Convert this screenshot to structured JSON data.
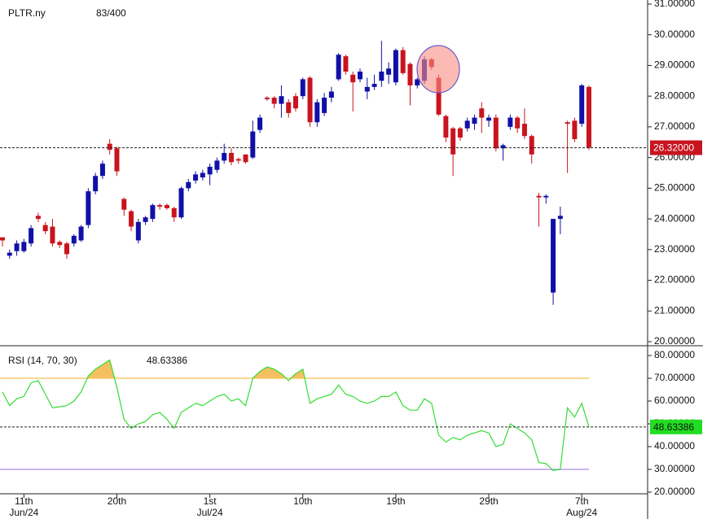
{
  "chart_data": [
    {
      "type": "candlestick",
      "title": "PLTR.ny",
      "subtitle": "83/400",
      "categories": [
        null,
        null,
        null,
        [
          "11th",
          "Jun/24"
        ],
        null,
        null,
        null,
        null,
        null,
        null,
        null,
        null,
        null,
        null,
        null,
        null,
        [
          "20th"
        ],
        null,
        null,
        null,
        null,
        null,
        null,
        null,
        null,
        null,
        null,
        null,
        null,
        [
          "1st",
          "Jul/24"
        ],
        null,
        null,
        null,
        null,
        null,
        null,
        null,
        null,
        null,
        null,
        null,
        null,
        [
          "10th"
        ],
        null,
        null,
        null,
        null,
        null,
        null,
        null,
        null,
        null,
        null,
        null,
        null,
        [
          "19th"
        ],
        null,
        null,
        null,
        null,
        null,
        null,
        null,
        null,
        null,
        null,
        null,
        null,
        [
          "29th"
        ],
        null,
        null,
        null,
        null,
        null,
        null,
        null,
        null,
        null,
        null,
        null,
        null,
        [
          "7th",
          "Aug/24"
        ],
        null
      ],
      "open": [
        23.4,
        22.8,
        22.95,
        22.95,
        23.2,
        24.1,
        23.8,
        23.75,
        23.25,
        23.2,
        23.2,
        23.3,
        23.8,
        24.9,
        25.4,
        26.45,
        26.3,
        24.65,
        24.25,
        23.3,
        23.9,
        24.0,
        24.45,
        24.45,
        24.35,
        24.05,
        25.0,
        25.25,
        25.35,
        25.45,
        25.6,
        25.9,
        26.15,
        25.95,
        26.1,
        26.0,
        26.9,
        27.95,
        27.95,
        27.75,
        27.8,
        28.0,
        28.0,
        28.6,
        27.15,
        27.45,
        27.95,
        28.55,
        29.3,
        28.7,
        28.55,
        28.15,
        28.3,
        28.5,
        28.7,
        28.45,
        29.5,
        29.05,
        28.35,
        28.5,
        29.2,
        28.6,
        27.35,
        26.95,
        26.95,
        26.95,
        27.1,
        27.6,
        27.2,
        27.3,
        26.3,
        27.0,
        27.3,
        27.1,
        26.7,
        24.75,
        24.7,
        21.6,
        24.0,
        27.15,
        27.2,
        27.1,
        28.3
      ],
      "high": [
        23.4,
        23.0,
        23.3,
        23.35,
        23.8,
        24.2,
        23.9,
        24.0,
        23.3,
        23.25,
        23.5,
        23.8,
        25.0,
        25.5,
        25.9,
        26.6,
        26.35,
        24.7,
        24.3,
        24.0,
        24.1,
        24.5,
        24.5,
        24.5,
        24.4,
        25.05,
        25.3,
        25.55,
        25.6,
        25.8,
        26.0,
        26.45,
        26.3,
        26.0,
        26.1,
        27.2,
        27.4,
        28.0,
        28.0,
        28.35,
        27.9,
        28.1,
        28.6,
        28.65,
        27.9,
        28.1,
        28.3,
        29.4,
        29.35,
        28.8,
        28.9,
        28.6,
        28.7,
        29.8,
        29.1,
        29.55,
        29.6,
        29.1,
        28.6,
        29.3,
        29.25,
        28.7,
        27.4,
        27.0,
        27.0,
        27.3,
        27.4,
        27.8,
        27.4,
        27.4,
        26.45,
        27.4,
        27.35,
        27.6,
        26.75,
        24.85,
        24.8,
        24.0,
        24.4,
        27.2,
        27.3,
        28.4,
        28.35
      ],
      "low": [
        23.1,
        22.7,
        22.8,
        22.9,
        23.1,
        23.9,
        23.5,
        23.1,
        23.05,
        22.7,
        23.1,
        23.25,
        23.7,
        24.8,
        25.3,
        26.1,
        25.4,
        24.1,
        23.6,
        23.2,
        23.8,
        23.9,
        24.3,
        24.3,
        23.9,
        24.0,
        24.9,
        25.15,
        25.25,
        25.1,
        25.5,
        25.8,
        25.75,
        25.8,
        25.8,
        25.95,
        26.8,
        27.85,
        27.6,
        27.3,
        27.3,
        27.5,
        27.9,
        27.0,
        27.0,
        27.35,
        27.8,
        28.5,
        28.7,
        27.5,
        28.45,
        27.9,
        28.2,
        28.3,
        28.4,
        28.35,
        28.7,
        27.7,
        28.25,
        28.4,
        28.85,
        27.35,
        26.5,
        25.4,
        26.55,
        26.85,
        26.9,
        26.8,
        27.0,
        26.2,
        25.9,
        26.9,
        26.8,
        26.6,
        25.8,
        23.75,
        24.5,
        21.2,
        23.5,
        25.5,
        26.5,
        27.0,
        26.25
      ],
      "close": [
        23.3,
        22.9,
        23.2,
        23.25,
        23.7,
        24.0,
        23.6,
        23.2,
        23.15,
        22.85,
        23.45,
        23.75,
        24.9,
        25.4,
        25.8,
        26.25,
        25.55,
        24.3,
        23.75,
        23.9,
        24.05,
        24.45,
        24.4,
        24.35,
        24.05,
        25.0,
        25.2,
        25.45,
        25.5,
        25.7,
        25.9,
        26.15,
        25.85,
        25.9,
        25.85,
        26.85,
        27.3,
        27.9,
        27.75,
        28.0,
        27.45,
        27.6,
        28.55,
        27.15,
        27.8,
        27.95,
        28.15,
        29.35,
        28.8,
        28.45,
        28.8,
        28.3,
        28.4,
        28.8,
        28.9,
        29.5,
        28.75,
        28.35,
        28.55,
        29.2,
        28.95,
        27.4,
        26.65,
        26.1,
        26.65,
        27.2,
        27.3,
        27.3,
        27.3,
        26.3,
        26.4,
        27.3,
        26.95,
        26.7,
        26.1,
        24.7,
        24.75,
        24.0,
        24.1,
        27.1,
        26.6,
        28.35,
        26.32
      ],
      "close_label": "26.32000",
      "up_color": "#1010a8",
      "down_color": "#c8141e",
      "ylim": [
        20,
        31
      ],
      "yticks": [
        {
          "value": 20,
          "label": "20.00000"
        },
        {
          "value": 21,
          "label": "21.00000"
        },
        {
          "value": 22,
          "label": "22.00000"
        },
        {
          "value": 23,
          "label": "23.00000"
        },
        {
          "value": 24,
          "label": "24.00000"
        },
        {
          "value": 25,
          "label": "25.00000"
        },
        {
          "value": 26,
          "label": "26.00000"
        },
        {
          "value": 27,
          "label": "27.00000"
        },
        {
          "value": 28,
          "label": "28.00000"
        },
        {
          "value": 29,
          "label": "29.00000"
        },
        {
          "value": 30,
          "label": "30.00000"
        },
        {
          "value": 31,
          "label": "31.00000"
        }
      ]
    },
    {
      "type": "line",
      "title": "RSI (14, 70, 30)",
      "series": [
        {
          "color": "#33dd33",
          "values": [
            64,
            58,
            61,
            62,
            68,
            69,
            63,
            57,
            57.5,
            58,
            60,
            64,
            71,
            74,
            76,
            78,
            66,
            52,
            48,
            50,
            51,
            54,
            55,
            52,
            48,
            55,
            57,
            59,
            58,
            60,
            62,
            63,
            60,
            61,
            58,
            70,
            73,
            75,
            74,
            72,
            69,
            72,
            74,
            59,
            61,
            62,
            63,
            67,
            63,
            62,
            60,
            59,
            60,
            62,
            62,
            64,
            58,
            56,
            56,
            61,
            59,
            45,
            42,
            44,
            43,
            45,
            46,
            47,
            46,
            40,
            41,
            50,
            48,
            46,
            43,
            33,
            32.5,
            29.5,
            30,
            57,
            53,
            59,
            48.63386
          ]
        }
      ],
      "levels": [
        70,
        30
      ],
      "level_colors": [
        "#f5c86a",
        "#b89ef0"
      ],
      "fill_colors": [
        "#f5c060",
        "#8aaad8"
      ],
      "value_box_color": "#22dd22",
      "ylim": [
        20,
        80
      ],
      "yticks": [
        {
          "value": 20,
          "label": "20.00000"
        },
        {
          "value": 30,
          "label": "30.00000"
        },
        {
          "value": 40,
          "label": "40.00000"
        },
        {
          "value": 50,
          "label": "50.00000"
        },
        {
          "value": 60,
          "label": "60.00000"
        },
        {
          "value": 70,
          "label": "70.00000"
        },
        {
          "value": 80,
          "label": "80.00000"
        }
      ]
    }
  ]
}
